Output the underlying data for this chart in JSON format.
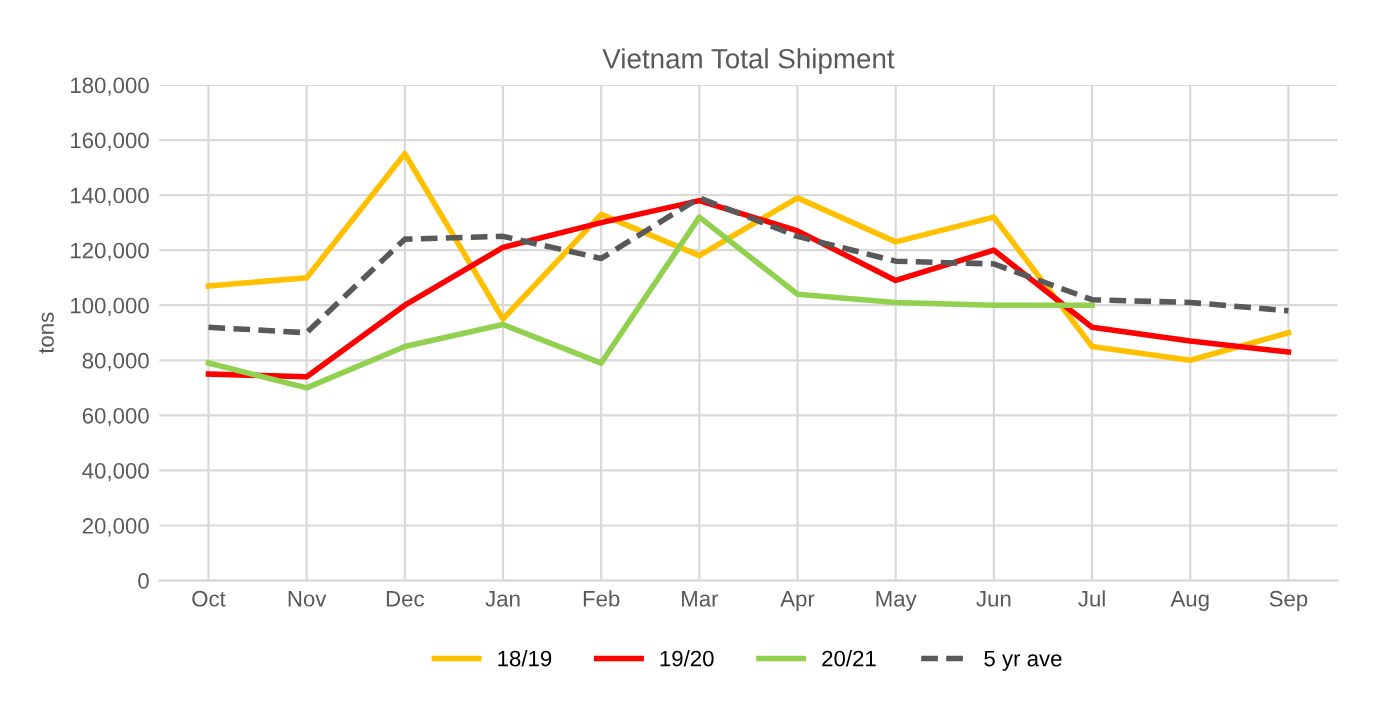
{
  "chart_data": {
    "type": "line",
    "title": "Vietnam Total Shipment",
    "ylabel": "tons",
    "categories": [
      "Oct",
      "Nov",
      "Dec",
      "Jan",
      "Feb",
      "Mar",
      "Apr",
      "May",
      "Jun",
      "Jul",
      "Aug",
      "Sep"
    ],
    "series": [
      {
        "name": "18/19",
        "color": "#ffc000",
        "values": [
          107000,
          110000,
          155000,
          95000,
          133000,
          118000,
          139000,
          123000,
          132000,
          85000,
          80000,
          90000
        ]
      },
      {
        "name": "19/20",
        "color": "#ff0000",
        "values": [
          75000,
          74000,
          100000,
          121000,
          130000,
          138000,
          127000,
          109000,
          120000,
          92000,
          87000,
          83000
        ]
      },
      {
        "name": "20/21",
        "color": "#92d050",
        "values": [
          79000,
          70000,
          85000,
          93000,
          79000,
          132000,
          104000,
          101000,
          100000,
          100000,
          null,
          null
        ]
      },
      {
        "name": "5 yr ave",
        "color": "#595959",
        "line_style": "dashed",
        "values": [
          92000,
          90000,
          124000,
          125000,
          117000,
          139000,
          125000,
          116000,
          115000,
          102000,
          101000,
          98000
        ]
      }
    ],
    "ylim": [
      0,
      180000
    ],
    "yticks": [
      {
        "value": 0,
        "label": "0"
      },
      {
        "value": 20000,
        "label": "20,000"
      },
      {
        "value": 40000,
        "label": "40,000"
      },
      {
        "value": 60000,
        "label": "60,000"
      },
      {
        "value": 80000,
        "label": "80,000"
      },
      {
        "value": 100000,
        "label": "100,000"
      },
      {
        "value": 120000,
        "label": "120,000"
      },
      {
        "value": 140000,
        "label": "140,000"
      },
      {
        "value": 160000,
        "label": "160,000"
      },
      {
        "value": 180000,
        "label": "180,000"
      }
    ],
    "grid": true,
    "legend": "bottom",
    "marker": "none"
  }
}
